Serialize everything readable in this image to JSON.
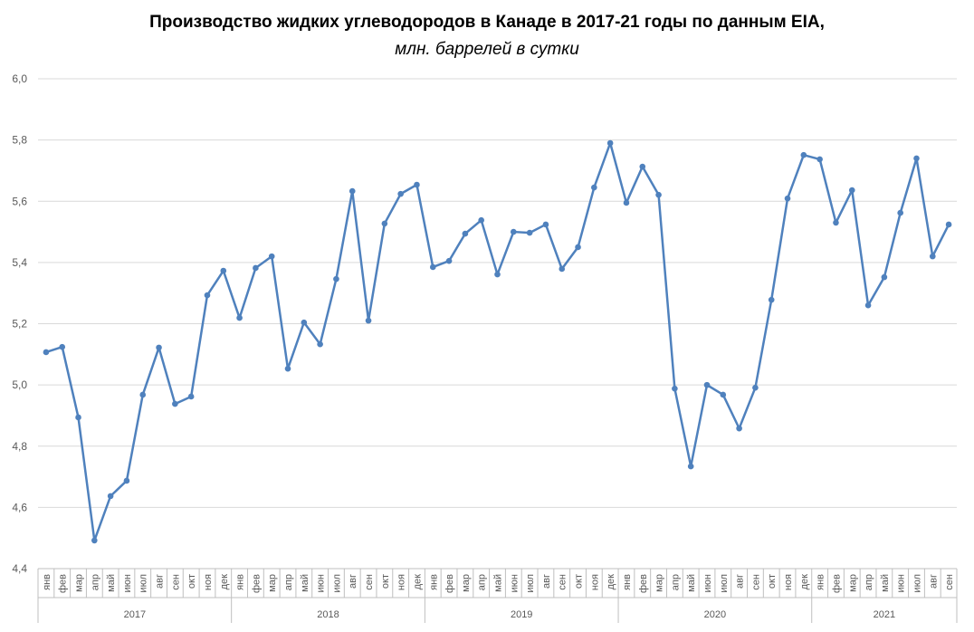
{
  "chart_data": {
    "type": "line",
    "title": "Производство жидких углеводородов в Канаде в 2017-21 годы по данным EIA,",
    "subtitle": "млн. баррелей в сутки",
    "xlabel": "",
    "ylabel": "",
    "ylim": [
      4.4,
      6.0
    ],
    "yticks": [
      "4,4",
      "4,6",
      "4,8",
      "5,0",
      "5,2",
      "5,4",
      "5,6",
      "5,8",
      "6,0"
    ],
    "grid": true,
    "legend": "none",
    "color": "#4F81BD",
    "months": [
      "янв",
      "фев",
      "мар",
      "апр",
      "май",
      "июн",
      "июл",
      "авг",
      "сен",
      "окт",
      "ноя",
      "дек"
    ],
    "years": [
      {
        "year": "2017",
        "values": [
          5.107,
          5.124,
          4.894,
          4.492,
          4.637,
          4.687,
          4.968,
          5.122,
          4.938,
          4.962,
          5.293,
          5.373
        ]
      },
      {
        "year": "2018",
        "values": [
          5.219,
          5.382,
          5.42,
          5.053,
          5.204,
          5.133,
          5.346,
          5.633,
          5.21,
          5.527,
          5.624,
          5.654
        ]
      },
      {
        "year": "2019",
        "values": [
          5.385,
          5.405,
          5.494,
          5.538,
          5.361,
          5.5,
          5.497,
          5.524,
          5.379,
          5.45,
          5.645,
          5.79
        ]
      },
      {
        "year": "2020",
        "values": [
          5.595,
          5.713,
          5.621,
          4.988,
          4.734,
          5.0,
          4.968,
          4.858,
          4.991,
          5.278,
          5.609,
          5.751
        ]
      },
      {
        "year": "2021",
        "values": [
          5.737,
          5.53,
          5.636,
          5.26,
          5.352,
          5.562,
          5.74,
          5.42,
          5.524
        ]
      }
    ]
  }
}
